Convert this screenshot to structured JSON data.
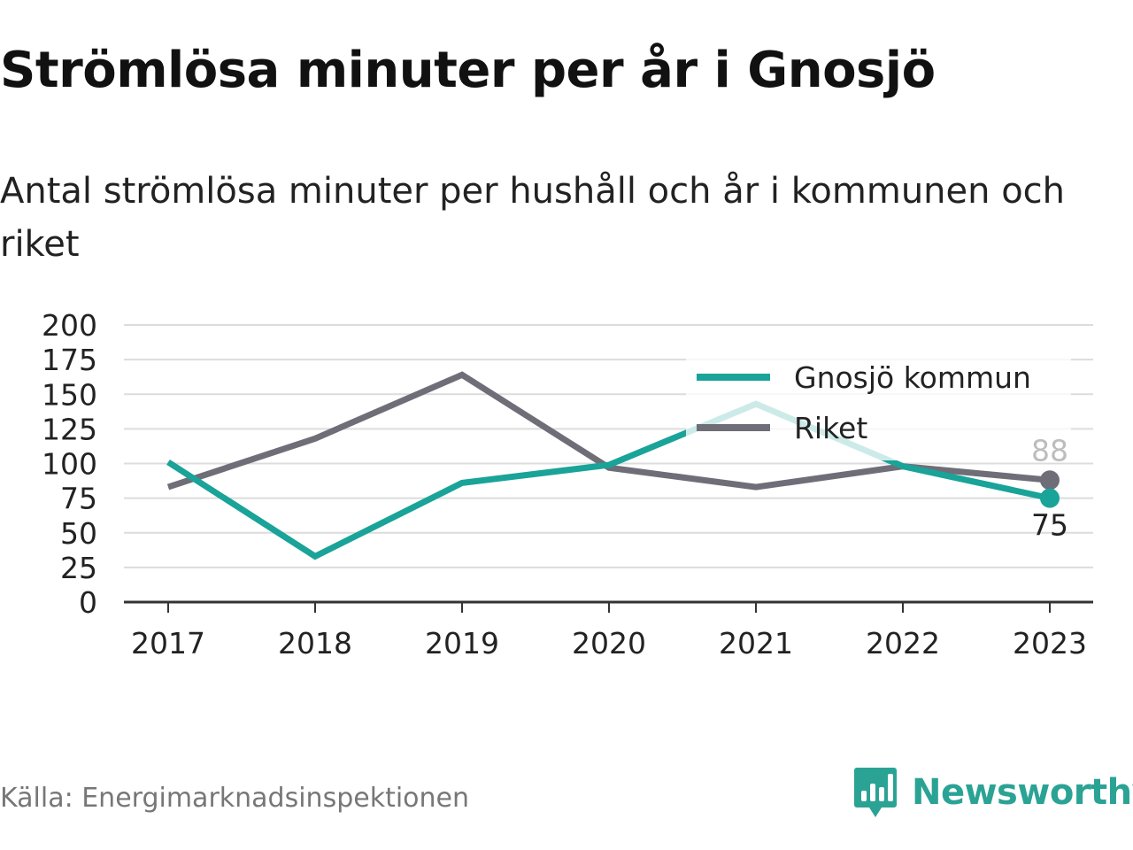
{
  "title": "Strömlösa minuter per år i Gnosjö",
  "subtitle": "Antal strömlösa minuter per hushåll och år i kommunen och riket",
  "source": "Källa: Energimarknadsinspektionen",
  "brand": "Newsworthy",
  "colors": {
    "gnosjo": "#1aa398",
    "riket": "#6f6e78",
    "grid": "#dcdcdc",
    "axis": "#333333",
    "brand": "#2aa395"
  },
  "chart_data": {
    "type": "line",
    "title": "Strömlösa minuter per år i Gnosjö",
    "subtitle": "Antal strömlösa minuter per hushåll och år i kommunen och riket",
    "x": [
      "2017",
      "2018",
      "2019",
      "2020",
      "2021",
      "2022",
      "2023"
    ],
    "ylim": [
      0,
      200
    ],
    "yticks": [
      0,
      25,
      50,
      75,
      100,
      125,
      150,
      175,
      200
    ],
    "grid": true,
    "legend": "top-right",
    "series": [
      {
        "name": "Gnosjö kommun",
        "color": "#1aa398",
        "values": [
          101,
          33,
          86,
          99,
          143,
          98,
          75
        ],
        "end_label": "75"
      },
      {
        "name": "Riket",
        "color": "#6f6e78",
        "values": [
          83,
          118,
          164,
          97,
          83,
          98,
          88
        ],
        "end_label": "88"
      }
    ]
  }
}
